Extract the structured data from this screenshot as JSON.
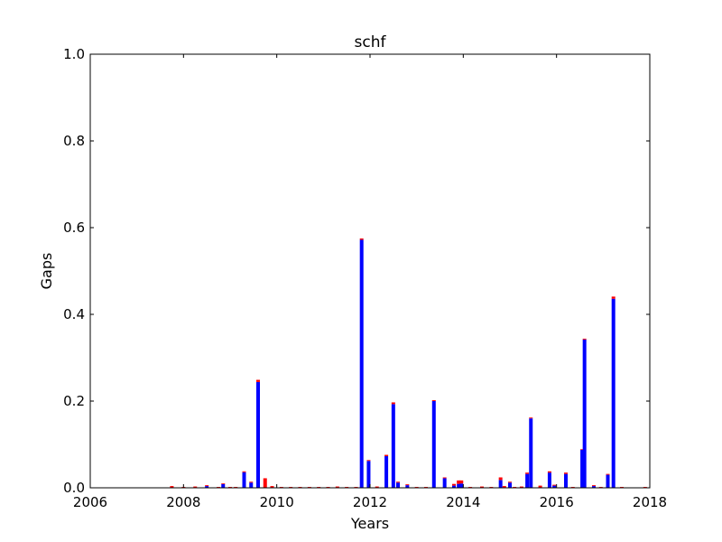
{
  "chart_data": {
    "type": "bar",
    "title": "schf",
    "xlabel": "Years",
    "ylabel": "Gaps",
    "xlim": [
      2006,
      2018
    ],
    "ylim": [
      0,
      1.0
    ],
    "xticks": [
      "2006",
      "2008",
      "2010",
      "2012",
      "2014",
      "2016",
      "2018"
    ],
    "yticks": [
      "0.0",
      "0.2",
      "0.4",
      "0.6",
      "0.8",
      "1.0"
    ],
    "grid": false,
    "stacked": true,
    "series_colors": [
      "#0000ff",
      "#ff0000"
    ],
    "x": [
      2007.75,
      2008.0,
      2008.25,
      2008.5,
      2008.75,
      2008.85,
      2009.0,
      2009.12,
      2009.3,
      2009.45,
      2009.6,
      2009.75,
      2009.9,
      2010.1,
      2010.3,
      2010.5,
      2010.7,
      2010.9,
      2011.1,
      2011.3,
      2011.5,
      2011.7,
      2011.82,
      2011.97,
      2012.15,
      2012.35,
      2012.5,
      2012.6,
      2012.8,
      2013.0,
      2013.2,
      2013.37,
      2013.6,
      2013.8,
      2013.9,
      2013.96,
      2014.15,
      2014.4,
      2014.6,
      2014.8,
      2014.88,
      2015.0,
      2015.1,
      2015.25,
      2015.37,
      2015.45,
      2015.65,
      2015.85,
      2015.95,
      2016.2,
      2016.35,
      2016.55,
      2016.6,
      2016.8,
      2016.95,
      2017.1,
      2017.22,
      2017.4,
      2017.9
    ],
    "series": [
      {
        "values": [
          0.001,
          0.0,
          0.0,
          0.004,
          0.0,
          0.009,
          0.0,
          0.0,
          0.036,
          0.012,
          0.244,
          0.0,
          0.0,
          0.0,
          0.0,
          0.0,
          0.0,
          0.0,
          0.0,
          0.0,
          0.0,
          0.0,
          0.572,
          0.062,
          0.0,
          0.073,
          0.193,
          0.012,
          0.006,
          0.0,
          0.0,
          0.2,
          0.022,
          0.005,
          0.009,
          0.01,
          0.0,
          0.0,
          0.0,
          0.018,
          0.0,
          0.012,
          0.0,
          0.0,
          0.032,
          0.16,
          0.0,
          0.035,
          0.005,
          0.032,
          0.0,
          0.088,
          0.342,
          0.004,
          0.0,
          0.03,
          0.436,
          0.0,
          0.0
        ]
      },
      {
        "values": [
          0.003,
          0.002,
          0.003,
          0.002,
          0.002,
          0.001,
          0.002,
          0.002,
          0.002,
          0.002,
          0.005,
          0.022,
          0.004,
          0.002,
          0.002,
          0.002,
          0.002,
          0.002,
          0.002,
          0.003,
          0.002,
          0.002,
          0.003,
          0.002,
          0.003,
          0.003,
          0.004,
          0.002,
          0.002,
          0.002,
          0.002,
          0.002,
          0.002,
          0.004,
          0.008,
          0.007,
          0.002,
          0.003,
          0.002,
          0.006,
          0.004,
          0.002,
          0.002,
          0.003,
          0.003,
          0.002,
          0.005,
          0.003,
          0.002,
          0.003,
          0.002,
          0.001,
          0.002,
          0.002,
          0.002,
          0.002,
          0.005,
          0.002,
          0.002
        ]
      }
    ]
  }
}
